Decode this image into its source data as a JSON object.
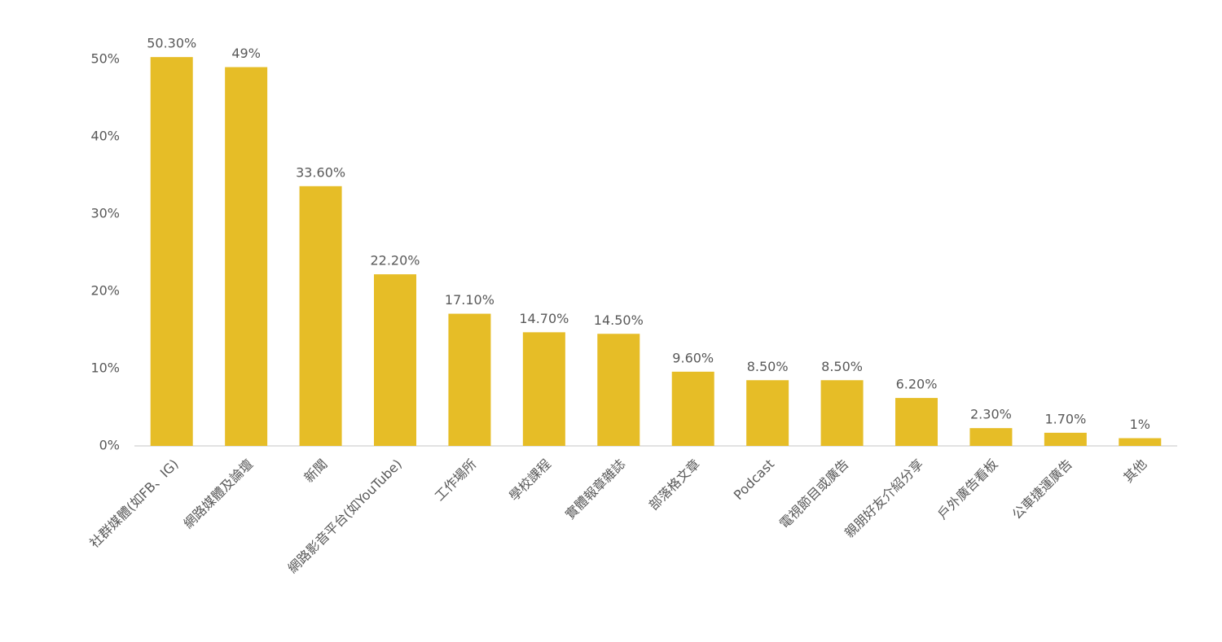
{
  "chart_data": {
    "type": "bar",
    "categories": [
      "社群媒體(如FB、IG)",
      "網路媒體及論壇",
      "新聞",
      "網路影音平台(如YouTube)",
      "工作場所",
      "學校課程",
      "實體報章雜誌",
      "部落格文章",
      "Podcast",
      "電視節目或廣告",
      "親朋好友介紹分享",
      "戶外廣告看板",
      "公車捷運廣告",
      "其他"
    ],
    "values": [
      50.3,
      49,
      33.6,
      22.2,
      17.1,
      14.7,
      14.5,
      9.6,
      8.5,
      8.5,
      6.2,
      2.3,
      1.7,
      1
    ],
    "value_labels": [
      "50.30%",
      "49%",
      "33.60%",
      "22.20%",
      "17.10%",
      "14.70%",
      "14.50%",
      "9.60%",
      "8.50%",
      "8.50%",
      "6.20%",
      "2.30%",
      "1.70%",
      "1%"
    ],
    "color": "#E6BD27",
    "ylim": [
      0,
      50
    ],
    "yticks": [
      {
        "value": 0,
        "label": "0%"
      },
      {
        "value": 10,
        "label": "10%"
      },
      {
        "value": 20,
        "label": "20%"
      },
      {
        "value": 30,
        "label": "30%"
      },
      {
        "value": 40,
        "label": "40%"
      },
      {
        "value": 50,
        "label": "50%"
      }
    ],
    "grid": false
  }
}
